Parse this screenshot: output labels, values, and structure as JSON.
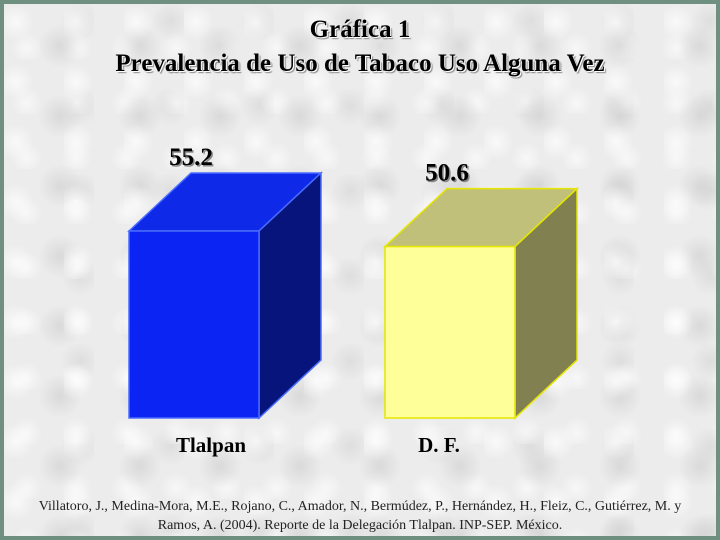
{
  "title": "Gráfica 1",
  "subtitle": "Prevalencia de Uso de Tabaco Uso Alguna Vez",
  "chart_data": {
    "type": "bar",
    "style": "3d-box",
    "categories": [
      "Tlalpan",
      "D. F."
    ],
    "values": [
      55.2,
      50.6
    ],
    "data_labels": [
      "55.2",
      "50.6"
    ],
    "ylim": [
      0,
      55.2
    ],
    "grid": false,
    "legend": "none",
    "colors": {
      "Tlalpan": {
        "front": "#0b23f3",
        "top": "#0f29e8",
        "side": "#06147b",
        "edge": "#4a6cff"
      },
      "D. F.": {
        "front": "#ffff99",
        "top": "#c0c07a",
        "side": "#808050",
        "edge": "#e6e600"
      }
    }
  },
  "source": "Villatoro, J., Medina-Mora, M.E., Rojano, C., Amador, N., Bermúdez, P., Hernández, H., Fleiz, C., Gutiérrez, M. y Ramos, A. (2004). Reporte de la Delegación Tlalpan. INP-SEP. México."
}
